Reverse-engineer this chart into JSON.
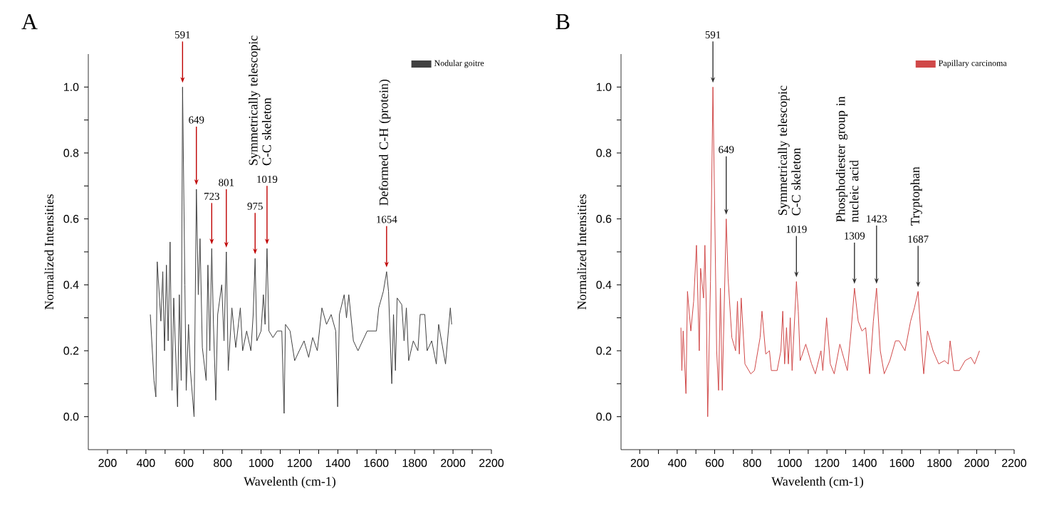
{
  "chart_data": [
    {
      "type": "line",
      "title": "A",
      "xlabel": "Wavelenth (cm-1)",
      "ylabel": "Normalized Intensities",
      "xlim": [
        100,
        2200
      ],
      "ylim": [
        -0.1,
        1.1
      ],
      "xticks": [
        200,
        {
          "value": 300,
          "label": null
        },
        400,
        {
          "value": 500,
          "label": null
        },
        600,
        {
          "value": 700,
          "label": null
        },
        800,
        {
          "value": 900,
          "label": null
        },
        1000,
        {
          "value": 1100,
          "label": null
        },
        1200,
        {
          "value": 1300,
          "label": null
        },
        1400,
        {
          "value": 1500,
          "label": null
        },
        1600,
        {
          "value": 1700,
          "label": null
        },
        1800,
        {
          "value": 1900,
          "label": null
        },
        2000,
        {
          "value": 2100,
          "label": null
        },
        2200
      ],
      "yticks": [
        {
          "value": 0,
          "label": "0.0"
        },
        {
          "value": 0.1,
          "label": null
        },
        {
          "value": 0.2,
          "label": "0.2"
        },
        {
          "value": 0.3,
          "label": null
        },
        {
          "value": 0.4,
          "label": "0.4"
        },
        {
          "value": 0.5,
          "label": null
        },
        {
          "value": 0.6,
          "label": "0.6"
        },
        {
          "value": 0.7,
          "label": null
        },
        {
          "value": 0.8,
          "label": "0.8"
        },
        {
          "value": 0.9,
          "label": null
        },
        {
          "value": 1,
          "label": "1.0"
        }
      ],
      "legend": "top right",
      "series": [
        {
          "name": "Nodular goitre",
          "color": "#404040",
          "x": [
            423,
            442,
            452,
            459,
            478,
            488,
            497,
            507,
            516,
            526,
            536,
            545,
            565,
            574,
            584,
            591,
            603,
            610,
            622,
            632,
            651,
            663,
            673,
            682,
            694,
            714,
            723,
            733,
            743,
            752,
            764,
            774,
            795,
            807,
            819,
            829,
            848,
            868,
            892,
            904,
            925,
            947,
            959,
            969,
            978,
            1000,
            1012,
            1021,
            1031,
            1041,
            1062,
            1084,
            1108,
            1120,
            1127,
            1151,
            1175,
            1199,
            1224,
            1248,
            1269,
            1293,
            1317,
            1341,
            1365,
            1389,
            1399,
            1408,
            1433,
            1445,
            1457,
            1481,
            1505,
            1529,
            1553,
            1577,
            1601,
            1613,
            1637,
            1654,
            1664,
            1681,
            1690,
            1700,
            1709,
            1733,
            1745,
            1757,
            1769,
            1793,
            1817,
            1829,
            1853,
            1865,
            1889,
            1913,
            1925,
            1961,
            1986,
            1993
          ],
          "values": [
            0.31,
            0.11,
            0.06,
            0.47,
            0.29,
            0.44,
            0.2,
            0.46,
            0.23,
            0.53,
            0.08,
            0.36,
            0.03,
            0.37,
            0.11,
            1.0,
            0.4,
            0.08,
            0.28,
            0.14,
            0.0,
            0.69,
            0.37,
            0.54,
            0.21,
            0.11,
            0.46,
            0.2,
            0.51,
            0.28,
            0.05,
            0.31,
            0.4,
            0.23,
            0.5,
            0.14,
            0.33,
            0.21,
            0.33,
            0.2,
            0.26,
            0.2,
            0.31,
            0.48,
            0.23,
            0.26,
            0.37,
            0.28,
            0.51,
            0.26,
            0.24,
            0.26,
            0.26,
            0.01,
            0.28,
            0.26,
            0.17,
            0.2,
            0.23,
            0.18,
            0.24,
            0.2,
            0.33,
            0.28,
            0.31,
            0.26,
            0.03,
            0.31,
            0.37,
            0.3,
            0.37,
            0.23,
            0.2,
            0.23,
            0.26,
            0.26,
            0.26,
            0.33,
            0.38,
            0.44,
            0.38,
            0.1,
            0.31,
            0.14,
            0.36,
            0.34,
            0.23,
            0.33,
            0.17,
            0.23,
            0.2,
            0.31,
            0.31,
            0.2,
            0.23,
            0.16,
            0.28,
            0.16,
            0.33,
            0.28
          ]
        }
      ],
      "annotations": [
        {
          "text": "591",
          "x": 591,
          "y": 1.0
        },
        {
          "text": "649",
          "x": 663,
          "y": 0.69
        },
        {
          "text": "723",
          "x": 743,
          "y": 0.51
        },
        {
          "text": "801",
          "x": 819,
          "y": 0.5
        },
        {
          "text": "975",
          "x": 969,
          "y": 0.48
        },
        {
          "text": "1019",
          "x": 1031,
          "y": 0.51
        },
        "Symmetrically telescopic C-C skeleton",
        {
          "text": "1654",
          "x": 1654,
          "y": 0.44
        },
        "Deformed C-H (protein)"
      ]
    },
    {
      "type": "line",
      "title": "B",
      "xlabel": "Wavelenth (cm-1)",
      "ylabel": "Normalized Intensities",
      "xlim": [
        100,
        2200
      ],
      "ylim": [
        -0.1,
        1.1
      ],
      "xticks": [
        200,
        {
          "value": 300,
          "label": null
        },
        400,
        {
          "value": 500,
          "label": null
        },
        600,
        {
          "value": 700,
          "label": null
        },
        800,
        {
          "value": 900,
          "label": null
        },
        1000,
        {
          "value": 1100,
          "label": null
        },
        1200,
        {
          "value": 1300,
          "label": null
        },
        1400,
        {
          "value": 1500,
          "label": null
        },
        1600,
        {
          "value": 1700,
          "label": null
        },
        1800,
        {
          "value": 1900,
          "label": null
        },
        2000,
        {
          "value": 2100,
          "label": null
        },
        2200
      ],
      "yticks": [
        {
          "value": 0,
          "label": "0.0"
        },
        {
          "value": 0.1,
          "label": null
        },
        {
          "value": 0.2,
          "label": "0.2"
        },
        {
          "value": 0.3,
          "label": null
        },
        {
          "value": 0.4,
          "label": "0.4"
        },
        {
          "value": 0.5,
          "label": null
        },
        {
          "value": 0.6,
          "label": "0.6"
        },
        {
          "value": 0.7,
          "label": null
        },
        {
          "value": 0.8,
          "label": "0.8"
        },
        {
          "value": 0.9,
          "label": null
        },
        {
          "value": 1,
          "label": "1.0"
        }
      ],
      "legend": "top right",
      "series": [
        {
          "name": "Papillary carcinoma",
          "color": "#d04848",
          "x": [
            420,
            425,
            432,
            447,
            455,
            473,
            488,
            503,
            518,
            525,
            541,
            548,
            556,
            563,
            578,
            591,
            611,
            621,
            631,
            641,
            662,
            672,
            692,
            712,
            722,
            732,
            742,
            762,
            793,
            813,
            843,
            853,
            873,
            893,
            903,
            934,
            954,
            964,
            974,
            984,
            994,
            1004,
            1014,
            1037,
            1047,
            1057,
            1087,
            1118,
            1138,
            1168,
            1178,
            1198,
            1218,
            1239,
            1269,
            1299,
            1309,
            1329,
            1347,
            1367,
            1387,
            1407,
            1428,
            1448,
            1465,
            1485,
            1506,
            1536,
            1566,
            1586,
            1617,
            1647,
            1667,
            1687,
            1707,
            1717,
            1737,
            1767,
            1797,
            1828,
            1848,
            1858,
            1878,
            1908,
            1938,
            1969,
            1989,
            2015
          ],
          "values": [
            0.27,
            0.14,
            0.26,
            0.07,
            0.38,
            0.26,
            0.35,
            0.52,
            0.2,
            0.45,
            0.36,
            0.52,
            0.32,
            0.0,
            0.41,
            1.0,
            0.2,
            0.08,
            0.39,
            0.08,
            0.6,
            0.42,
            0.24,
            0.2,
            0.35,
            0.19,
            0.36,
            0.16,
            0.13,
            0.14,
            0.24,
            0.32,
            0.19,
            0.2,
            0.14,
            0.14,
            0.2,
            0.32,
            0.16,
            0.27,
            0.16,
            0.3,
            0.14,
            0.41,
            0.32,
            0.17,
            0.22,
            0.16,
            0.13,
            0.2,
            0.14,
            0.3,
            0.16,
            0.13,
            0.22,
            0.16,
            0.14,
            0.26,
            0.39,
            0.29,
            0.26,
            0.27,
            0.13,
            0.29,
            0.39,
            0.2,
            0.13,
            0.17,
            0.23,
            0.23,
            0.2,
            0.29,
            0.33,
            0.38,
            0.2,
            0.13,
            0.26,
            0.2,
            0.16,
            0.17,
            0.16,
            0.23,
            0.14,
            0.14,
            0.17,
            0.18,
            0.16,
            0.2
          ]
        }
      ],
      "annotations": [
        {
          "text": "591",
          "x": 591,
          "y": 1.0
        },
        {
          "text": "649",
          "x": 662,
          "y": 0.6
        },
        {
          "text": "1019",
          "x": 1037,
          "y": 0.41
        },
        "Symmetrically telescopic C-C skeleton",
        {
          "text": "1309",
          "x": 1347,
          "y": 0.39
        },
        "Phosphodiester group in nucleic acid",
        {
          "text": "1423",
          "x": 1465,
          "y": 0.39
        },
        {
          "text": "1687",
          "x": 1687,
          "y": 0.38
        },
        "Tryptophan"
      ]
    }
  ]
}
